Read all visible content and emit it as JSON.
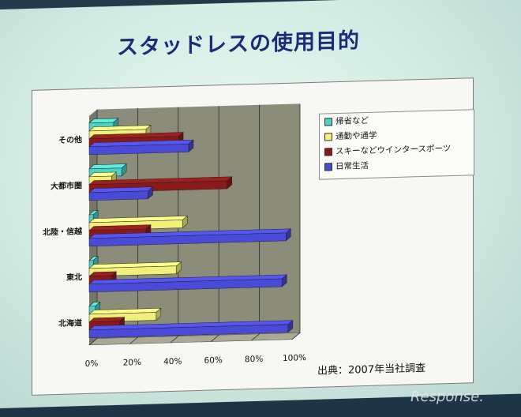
{
  "slide": {
    "title": "スタッドレスの使用目的"
  },
  "source_note": "出典：2007年当社調査",
  "watermark": "Response.",
  "colors": {
    "series": [
      "#4fd1c5",
      "#f0f07a",
      "#8a1a1a",
      "#4a4ad8"
    ],
    "plot_back": "#8c8c7a",
    "plot_floor": "#a9a996",
    "grid": "#2b2b2b"
  },
  "chart_data": {
    "type": "bar",
    "orientation": "horizontal",
    "stacked": false,
    "three_d": true,
    "categories": [
      "その他",
      "大都市圏",
      "北陸・信越",
      "東北",
      "北海道"
    ],
    "series": [
      {
        "name": "帰省など",
        "values": [
          12,
          16,
          2,
          2,
          3
        ]
      },
      {
        "name": "通勤や通学",
        "values": [
          28,
          11,
          46,
          43,
          33
        ]
      },
      {
        "name": "スキーなどウインタースポーツ",
        "values": [
          44,
          68,
          28,
          11,
          15
        ]
      },
      {
        "name": "日常生活",
        "values": [
          49,
          29,
          97,
          95,
          98
        ]
      }
    ],
    "xlim": [
      0,
      100
    ],
    "xticks": [
      "0%",
      "20%",
      "40%",
      "60%",
      "80%",
      "100%"
    ],
    "grid": true,
    "legend_position": "right"
  }
}
